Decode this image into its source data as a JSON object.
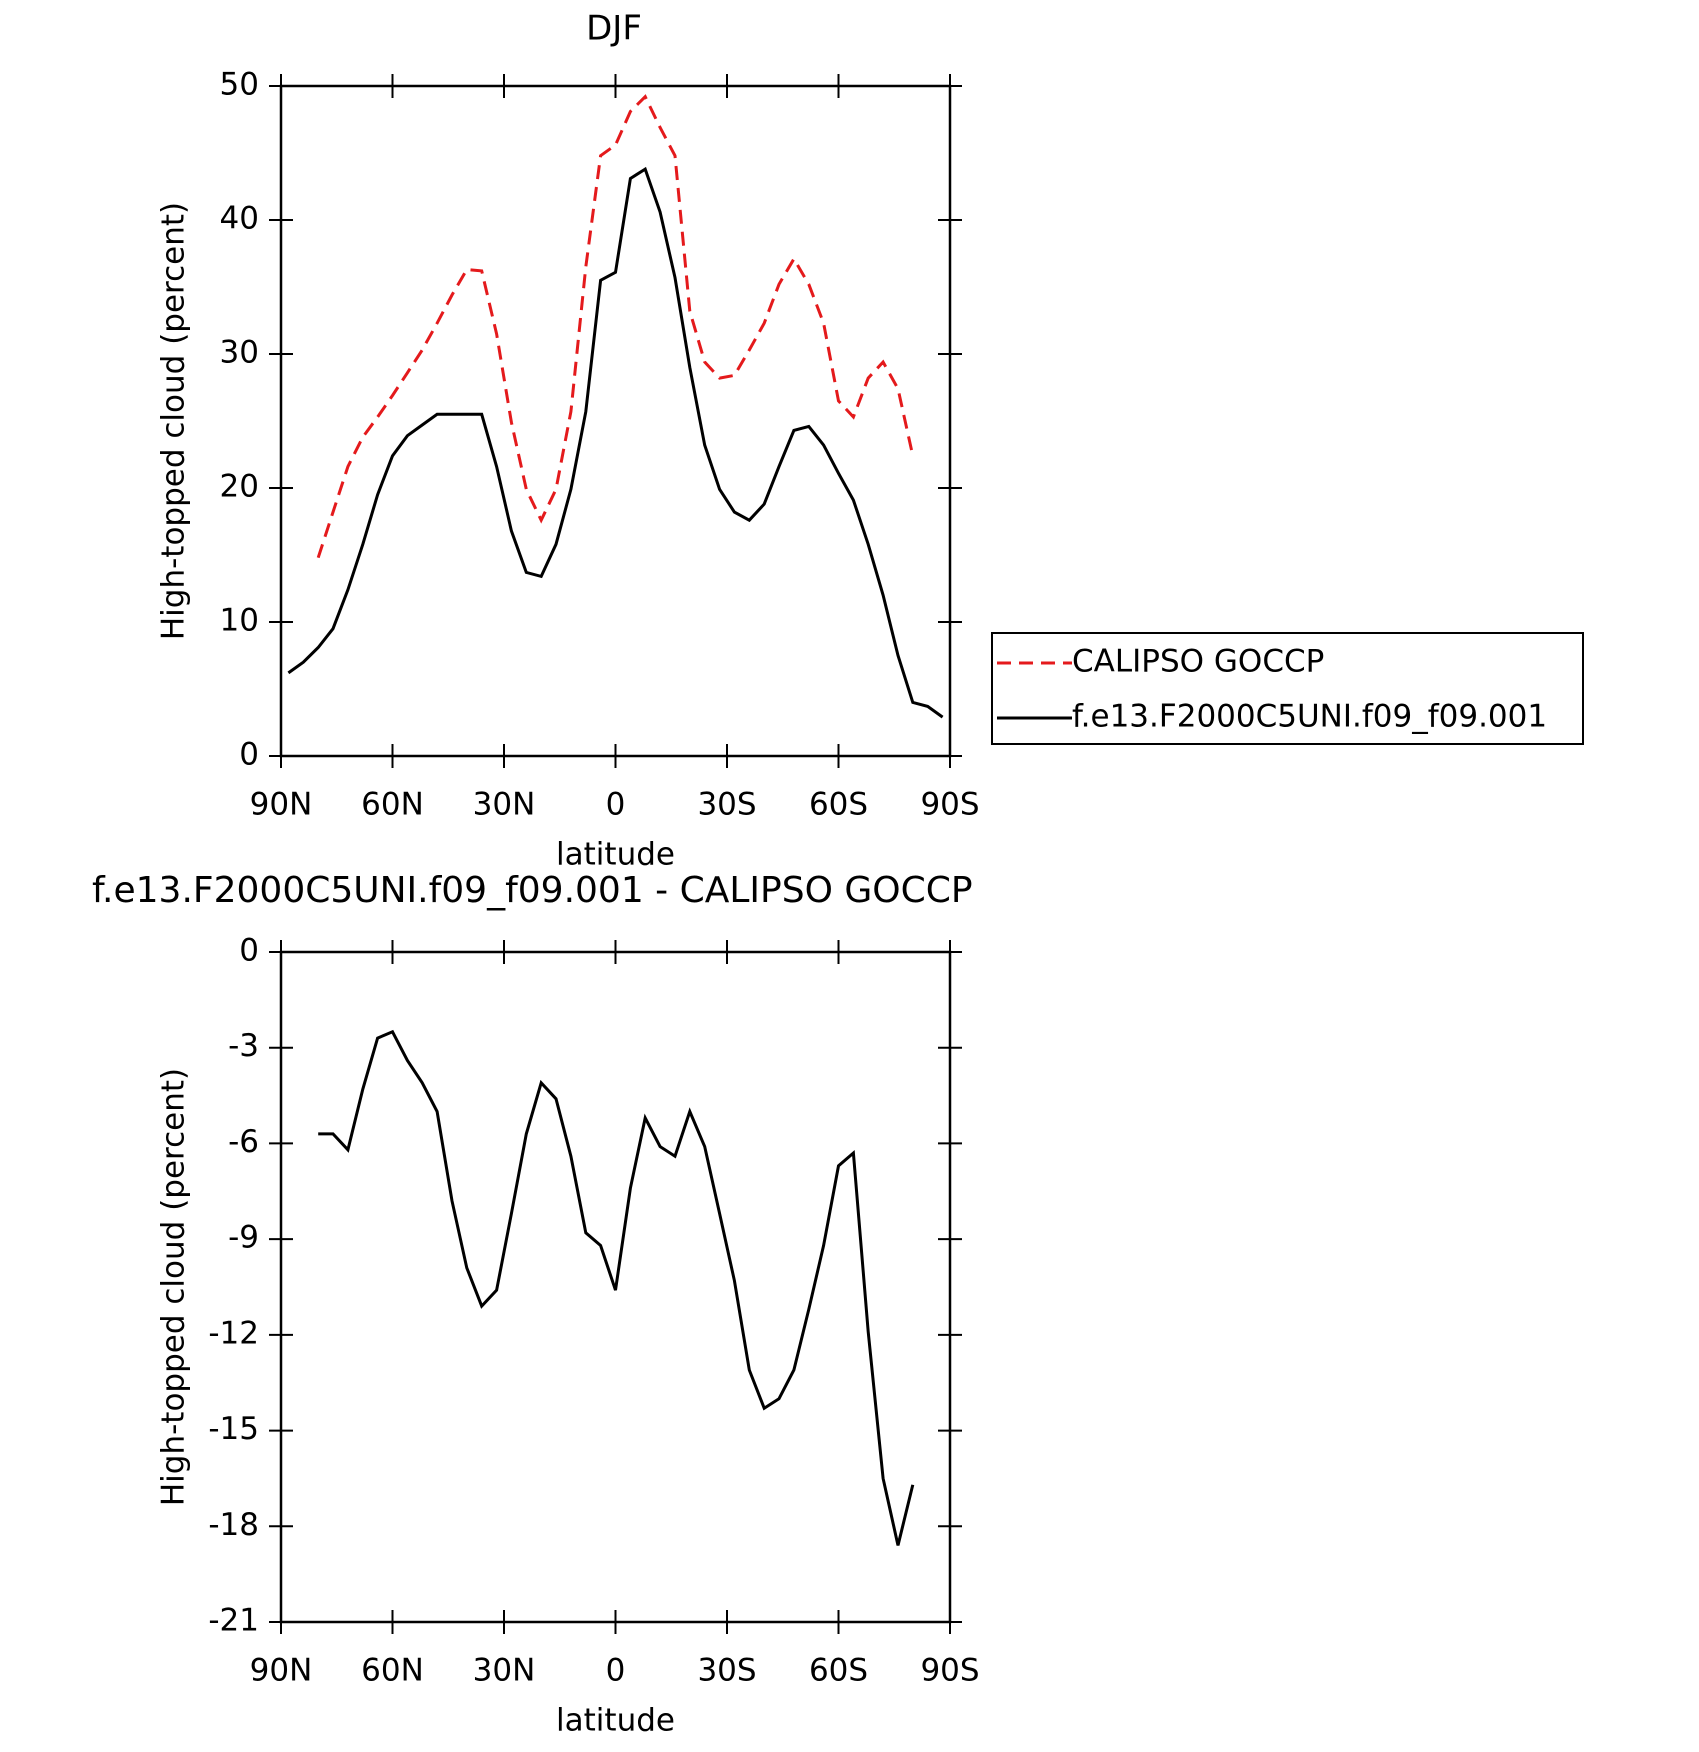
{
  "chart_data": [
    {
      "type": "line",
      "title": "DJF",
      "ylabel": "High-topped cloud (percent)",
      "xlabel": "latitude",
      "xlim": [
        90,
        -90
      ],
      "xticks": [
        {
          "value": 90,
          "label": "90N"
        },
        {
          "value": 60,
          "label": "60N"
        },
        {
          "value": 30,
          "label": "30N"
        },
        0,
        {
          "value": -30,
          "label": "30S"
        },
        {
          "value": -60,
          "label": "60S"
        },
        {
          "value": -90,
          "label": "90S"
        }
      ],
      "ylim": [
        0,
        50
      ],
      "yticks": [
        0,
        10,
        20,
        30,
        40,
        50
      ],
      "legend": "right",
      "series": [
        {
          "name": "CALIPSO GOCCP",
          "color": "#e41a1c",
          "style": "dashed",
          "x": [
            80,
            76,
            72,
            68,
            64,
            60,
            56,
            52,
            48,
            44,
            40,
            36,
            32,
            28,
            24,
            20,
            16,
            12,
            8,
            4,
            0,
            -4,
            -8,
            -12,
            -16,
            -20,
            -24,
            -28,
            -32,
            -36,
            -40,
            -44,
            -48,
            -52,
            -56,
            -60,
            -64,
            -68,
            -72,
            -76,
            -80
          ],
          "values": [
            14.8,
            18.2,
            21.6,
            23.8,
            25.3,
            26.9,
            28.6,
            30.3,
            32.3,
            34.4,
            36.3,
            36.2,
            31.5,
            24.9,
            19.9,
            17.6,
            19.9,
            25.7,
            36.5,
            44.8,
            45.6,
            48.1,
            49.2,
            46.9,
            44.8,
            33.2,
            29.4,
            28.2,
            28.4,
            30.3,
            32.3,
            35.2,
            37.1,
            35.2,
            32.3,
            26.5,
            25.3,
            28.2,
            29.4,
            27.4,
            22.4
          ]
        },
        {
          "name": "f.e13.F2000C5UNI.f09_f09.001",
          "color": "#000000",
          "style": "solid",
          "x": [
            88,
            84,
            80,
            76,
            72,
            68,
            64,
            60,
            56,
            52,
            48,
            44,
            40,
            36,
            32,
            28,
            24,
            20,
            16,
            12,
            8,
            4,
            0,
            -4,
            -8,
            -12,
            -16,
            -20,
            -24,
            -28,
            -32,
            -36,
            -40,
            -44,
            -48,
            -52,
            -56,
            -60,
            -64,
            -68,
            -72,
            -76,
            -80,
            -84,
            -88
          ],
          "values": [
            6.2,
            7.0,
            8.1,
            9.5,
            12.4,
            15.8,
            19.5,
            22.4,
            23.9,
            24.7,
            25.5,
            25.5,
            25.5,
            25.5,
            21.6,
            16.8,
            13.7,
            13.4,
            15.8,
            19.9,
            25.7,
            35.5,
            36.1,
            43.1,
            43.8,
            40.6,
            35.7,
            29.0,
            23.2,
            19.9,
            18.2,
            17.6,
            18.8,
            21.6,
            24.3,
            24.6,
            23.2,
            21.1,
            19.1,
            15.8,
            12.0,
            7.5,
            4.0,
            3.7,
            2.9
          ]
        }
      ]
    },
    {
      "type": "line",
      "title": "f.e13.F2000C5UNI.f09_f09.001 - CALIPSO GOCCP",
      "ylabel": "High-topped cloud (percent)",
      "xlabel": "latitude",
      "xlim": [
        90,
        -90
      ],
      "xticks": [
        {
          "value": 90,
          "label": "90N"
        },
        {
          "value": 60,
          "label": "60N"
        },
        {
          "value": 30,
          "label": "30N"
        },
        0,
        {
          "value": -30,
          "label": "30S"
        },
        {
          "value": -60,
          "label": "60S"
        },
        {
          "value": -90,
          "label": "90S"
        }
      ],
      "ylim": [
        -21,
        0
      ],
      "yticks": [
        0,
        -3,
        -6,
        -9,
        -12,
        -15,
        -18,
        -21
      ],
      "series": [
        {
          "color": "#000000",
          "style": "solid",
          "x": [
            80,
            76,
            72,
            68,
            64,
            60,
            56,
            52,
            48,
            44,
            40,
            36,
            32,
            28,
            24,
            20,
            16,
            12,
            8,
            4,
            0,
            -4,
            -8,
            -12,
            -16,
            -20,
            -24,
            -28,
            -32,
            -36,
            -40,
            -44,
            -48,
            -52,
            -56,
            -60,
            -64,
            -68,
            -72,
            -76,
            -80
          ],
          "values": [
            -5.7,
            -5.7,
            -6.2,
            -4.3,
            -2.7,
            -2.5,
            -3.4,
            -4.1,
            -5.0,
            -7.8,
            -9.9,
            -11.1,
            -10.6,
            -8.2,
            -5.7,
            -4.1,
            -4.6,
            -6.4,
            -8.8,
            -9.2,
            -10.6,
            -7.4,
            -5.2,
            -6.1,
            -6.4,
            -5.0,
            -6.1,
            -8.2,
            -10.3,
            -13.1,
            -14.3,
            -14.0,
            -13.1,
            -11.2,
            -9.2,
            -6.7,
            -6.3,
            -11.9,
            -16.5,
            -18.6,
            -16.7
          ]
        }
      ]
    }
  ]
}
